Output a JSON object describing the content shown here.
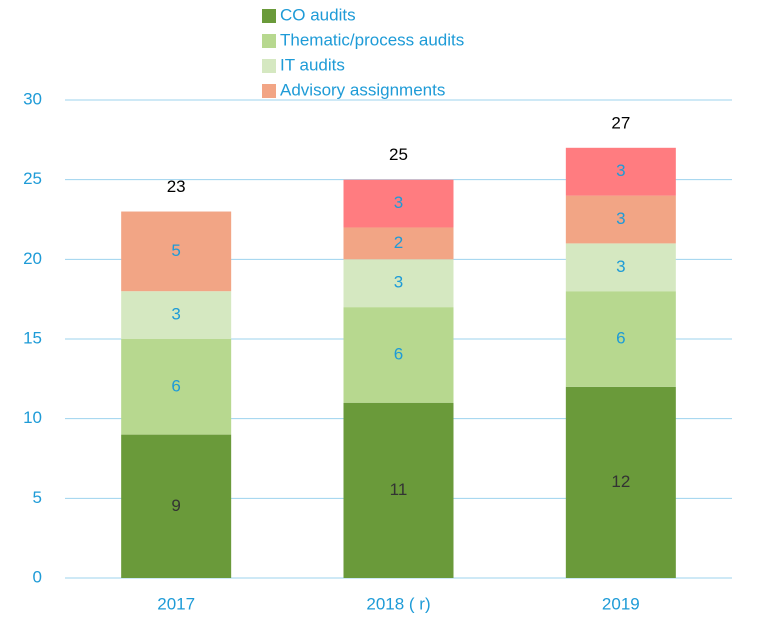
{
  "chart_data": {
    "type": "stacked_bar",
    "categories": [
      "2017",
      "2018 ( r)",
      "2019"
    ],
    "series": [
      {
        "name": "CO audits",
        "color": "#6a9a3a",
        "label_color": "#333333",
        "values": [
          9,
          11,
          12
        ]
      },
      {
        "name": "Thematic/process audits",
        "color": "#b7d88f",
        "label_color": "#1e9bd7",
        "values": [
          6,
          6,
          6
        ]
      },
      {
        "name": "IT audits",
        "color": "#d5e8c1",
        "label_color": "#1e9bd7",
        "values": [
          3,
          3,
          3
        ]
      },
      {
        "name": "Advisory assignments",
        "color": "#f2a585",
        "label_color": "#1e9bd7",
        "values": [
          5,
          2,
          3
        ]
      },
      {
        "color": "#ff7c80",
        "label_color": "#1e9bd7",
        "values": [
          null,
          3,
          3
        ]
      }
    ],
    "totals": [
      23,
      25,
      27
    ],
    "ylim": [
      0,
      30
    ],
    "yticks": [
      0,
      5,
      10,
      15,
      20,
      25,
      30
    ],
    "grid": true
  }
}
